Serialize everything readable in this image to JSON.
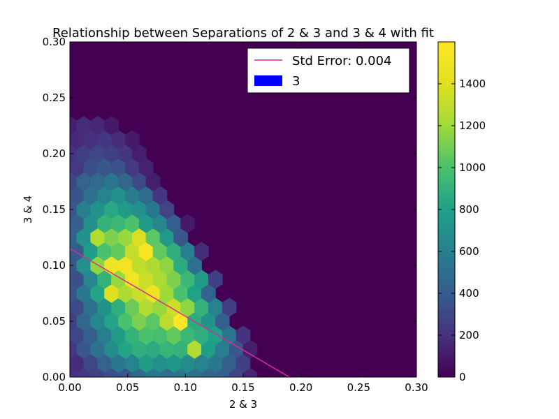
{
  "chart_data": {
    "type": "heatmap",
    "subtype": "hexbin with linear fit",
    "title": "Relationship between Separations of 2 & 3 and 3 & 4 with fit",
    "xlabel": "2 & 3",
    "ylabel": "3 & 4",
    "xlim": [
      0.0,
      0.3
    ],
    "ylim": [
      0.0,
      0.3
    ],
    "xticks": [
      "0.00",
      "0.05",
      "0.10",
      "0.15",
      "0.20",
      "0.25",
      "0.30"
    ],
    "yticks": [
      "0.00",
      "0.05",
      "0.10",
      "0.15",
      "0.20",
      "0.25",
      "0.30"
    ],
    "colormap": "viridis",
    "background_color": "#440154",
    "colorbar": {
      "range": [
        0,
        1600
      ],
      "ticks": [
        "0",
        "200",
        "400",
        "600",
        "800",
        "1000",
        "1200",
        "1400"
      ]
    },
    "fit_line": {
      "label": "Std Error: 0.004",
      "color": "#d62f8c",
      "points": [
        [
          0.0,
          0.115
        ],
        [
          0.19,
          0.0
        ]
      ]
    },
    "legend": {
      "placement": "top-right",
      "entries": [
        {
          "label": "Std Error: 0.004",
          "kind": "line",
          "color": "#d62f8c"
        },
        {
          "label": "3",
          "kind": "patch",
          "color": "#0000ff"
        }
      ]
    },
    "hex_grid": {
      "rows_y": [
        0.0,
        0.0125,
        0.025,
        0.0375,
        0.05,
        0.0625,
        0.075,
        0.0875,
        0.1,
        0.1125,
        0.125,
        0.1375,
        0.15,
        0.1625,
        0.175,
        0.1875,
        0.2,
        0.2125,
        0.225
      ],
      "even_row_x": [
        0.0,
        0.012,
        0.024,
        0.036,
        0.048,
        0.06,
        0.072,
        0.084,
        0.096,
        0.108,
        0.12,
        0.132,
        0.144,
        0.156
      ],
      "odd_row_x": [
        0.006,
        0.018,
        0.03,
        0.042,
        0.054,
        0.066,
        0.078,
        0.09,
        0.102,
        0.114,
        0.126,
        0.138,
        0.15
      ],
      "counts": [
        [
          200,
          240,
          280,
          340,
          380,
          480,
          560,
          500,
          560,
          520,
          460,
          430,
          300,
          150
        ],
        [
          180,
          300,
          440,
          560,
          620,
          760,
          700,
          740,
          680,
          620,
          560,
          420,
          260
        ],
        [
          220,
          380,
          520,
          680,
          820,
          880,
          860,
          920,
          900,
          1260,
          780,
          600,
          380,
          120
        ],
        [
          300,
          420,
          600,
          760,
          900,
          1000,
          980,
          1060,
          940,
          880,
          800,
          540,
          200
        ],
        [
          260,
          460,
          640,
          820,
          1000,
          1120,
          1040,
          1280,
          1590,
          860,
          720,
          420,
          0,
          0
        ],
        [
          320,
          520,
          720,
          880,
          1080,
          1260,
          1180,
          1340,
          1160,
          900,
          620,
          260,
          0
        ],
        [
          360,
          560,
          820,
          1400,
          1240,
          1340,
          1480,
          1200,
          1000,
          800,
          440,
          0,
          0,
          0
        ],
        [
          340,
          640,
          900,
          1180,
          1520,
          1340,
          1240,
          1120,
          940,
          760,
          260,
          0,
          0
        ],
        [
          380,
          700,
          1160,
          1500,
          1520,
          1300,
          1240,
          1160,
          860,
          520,
          0,
          0,
          0,
          0
        ],
        [
          400,
          780,
          1000,
          1060,
          1320,
          1580,
          1060,
          880,
          600,
          180,
          0,
          0,
          0
        ],
        [
          440,
          720,
          1260,
          1120,
          1180,
          1380,
          1040,
          760,
          380,
          0,
          0,
          0,
          0,
          0
        ],
        [
          420,
          700,
          900,
          940,
          1000,
          760,
          640,
          420,
          100,
          0,
          0,
          0,
          0
        ],
        [
          380,
          600,
          720,
          840,
          760,
          700,
          560,
          280,
          0,
          0,
          0,
          0,
          0,
          0
        ],
        [
          360,
          520,
          620,
          700,
          580,
          480,
          220,
          0,
          0,
          0,
          0,
          0,
          0
        ],
        [
          300,
          440,
          480,
          540,
          460,
          320,
          120,
          0,
          0,
          0,
          0,
          0,
          0,
          0
        ],
        [
          240,
          340,
          380,
          360,
          240,
          140,
          0,
          0,
          0,
          0,
          0,
          0,
          0
        ],
        [
          200,
          260,
          300,
          260,
          220,
          120,
          0,
          0,
          0,
          0,
          0,
          0,
          0,
          0
        ],
        [
          160,
          200,
          220,
          180,
          100,
          0,
          0,
          0,
          0,
          0,
          0,
          0,
          0
        ],
        [
          120,
          180,
          160,
          100,
          0,
          0,
          0,
          0,
          0,
          0,
          0,
          0,
          0,
          0
        ]
      ]
    }
  }
}
